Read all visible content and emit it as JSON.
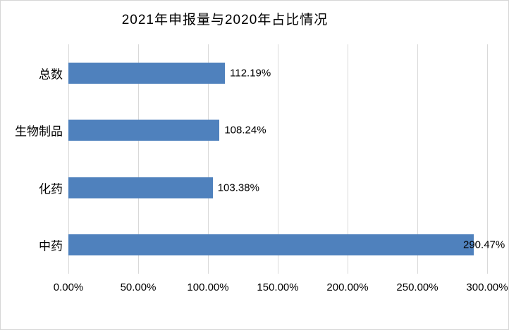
{
  "chart_data": {
    "type": "bar",
    "orientation": "horizontal",
    "title": "2021年申报量与2020年占比情况",
    "categories": [
      "总数",
      "生物制品",
      "化药",
      "中药"
    ],
    "values": [
      112.19,
      108.24,
      103.38,
      290.47
    ],
    "data_labels": [
      "112.19%",
      "108.24%",
      "103.38%",
      "290.47%"
    ],
    "xtick_values": [
      0,
      50,
      100,
      150,
      200,
      250,
      300
    ],
    "xtick_labels": [
      "0.00%",
      "50.00%",
      "100.00%",
      "150.00%",
      "200.00%",
      "250.00%",
      "300.00%"
    ],
    "xlim": [
      0,
      300
    ],
    "grid": true,
    "legend": false,
    "bar_color": "#4F81BD",
    "gridline_color": "#D9D9D9",
    "border_color": "#D6D6D6",
    "text_color": "#000000",
    "background_color": "#FFFFFF"
  }
}
